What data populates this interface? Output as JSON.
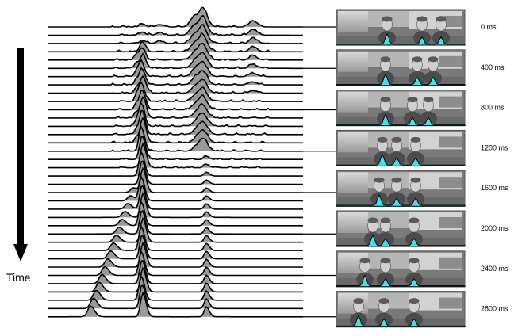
{
  "axis_label": "Time",
  "time_labels": [
    "0 ms",
    "400 ms",
    "800 ms",
    "1200 ms",
    "1600 ms",
    "2000 ms",
    "2400 ms",
    "2800 ms"
  ],
  "trace_count": 36,
  "colors": {
    "background": "#ffffff",
    "ink": "#000000",
    "fill": "#999999",
    "highlight": "#33e6f0",
    "photo_sky": "#c8c8c8",
    "photo_wall": "#7a7a7a"
  }
}
